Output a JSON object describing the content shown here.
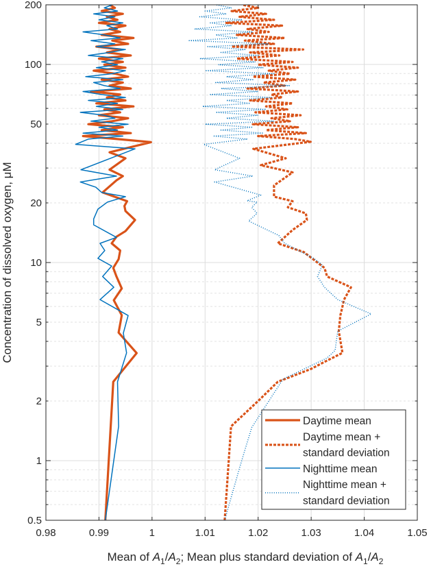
{
  "chart_data": {
    "type": "line",
    "title": "",
    "xlabel_parts": [
      {
        "t": "Mean of ",
        "s": "n"
      },
      {
        "t": "A",
        "s": "i"
      },
      {
        "t": "1",
        "s": "sub"
      },
      {
        "t": "/",
        "s": "n"
      },
      {
        "t": "A",
        "s": "i"
      },
      {
        "t": "2",
        "s": "sub"
      },
      {
        "t": "; Mean plus standard deviation of ",
        "s": "n"
      },
      {
        "t": "A",
        "s": "i"
      },
      {
        "t": "1",
        "s": "sub"
      },
      {
        "t": "/",
        "s": "n"
      },
      {
        "t": "A",
        "s": "i"
      },
      {
        "t": "2",
        "s": "sub"
      }
    ],
    "ylabel": "Concentration of dissolved oxygen, μM",
    "xlim": [
      0.98,
      1.05
    ],
    "ylim": [
      0.5,
      200
    ],
    "yscale": "log",
    "grid": true,
    "xticks": [
      0.98,
      0.99,
      1.0,
      1.01,
      1.02,
      1.03,
      1.04,
      1.05
    ],
    "xtick_labels": [
      "0.98",
      "0.99",
      "1",
      "1.01",
      "1.02",
      "1.03",
      "1.04",
      "1.05"
    ],
    "yticks": [
      0.5,
      1,
      2,
      5,
      10,
      20,
      50,
      100,
      200
    ],
    "ytick_labels": [
      "0.5",
      "1",
      "2",
      "5",
      "10",
      "20",
      "50",
      "100",
      "200"
    ],
    "legend_placement": "bottom-right",
    "high_y": [
      42,
      43.5,
      45,
      46.6,
      48.2,
      49.9,
      51.7,
      53.5,
      55.4,
      57.3,
      59.3,
      61.4,
      63.6,
      65.8,
      68.1,
      70.5,
      73,
      75.6,
      78.2,
      81,
      83.8,
      86.8,
      89.8,
      93,
      96.3,
      99.7,
      103,
      107,
      111,
      115,
      119,
      123,
      127,
      132,
      136,
      141,
      146,
      151,
      157,
      162,
      168,
      174,
      180,
      186,
      193,
      200
    ],
    "series": [
      {
        "name": "Daytime mean",
        "legend": [
          "Daytime mean"
        ],
        "color": "#D95319",
        "style": "solid-thick",
        "low": {
          "y": [
            0.5,
            2.5,
            3.49,
            4.43,
            5.42,
            6.45,
            7.4,
            8.5,
            9.4,
            10.4,
            11.5,
            12.5,
            13.5,
            14.4,
            16.4,
            18.2,
            19.3,
            20.4,
            22.6,
            26,
            27.3,
            29.4,
            33.6,
            36,
            40.5
          ],
          "x": [
            0.9912,
            0.9927,
            0.9971,
            0.9937,
            0.9943,
            0.9928,
            0.9943,
            0.9933,
            0.9927,
            0.9937,
            0.994,
            0.9924,
            0.9933,
            0.995,
            0.9968,
            0.995,
            0.9948,
            0.9953,
            0.9907,
            0.9933,
            0.9945,
            0.992,
            0.995,
            0.992,
            0.9998
          ]
        },
        "high_x": [
          0.9935,
          0.987,
          0.996,
          0.9905,
          0.9945,
          0.988,
          0.9925,
          0.9955,
          0.99,
          0.994,
          0.991,
          0.9965,
          0.9895,
          0.995,
          0.9915,
          0.994,
          0.9885,
          0.996,
          0.992,
          0.9945,
          0.9905,
          0.9955,
          0.993,
          0.989,
          0.995,
          0.991,
          0.9945,
          0.99,
          0.996,
          0.9915,
          0.994,
          0.9895,
          0.9955,
          0.9925,
          0.9965,
          0.9905,
          0.994,
          0.992,
          0.995,
          0.99,
          0.9935,
          0.9915,
          0.9945,
          0.9905,
          0.993,
          0.992
        ]
      },
      {
        "name": "Daytime mean + standard deviation",
        "legend": [
          "Daytime mean +",
          "standard deviation"
        ],
        "color": "#D95319",
        "style": "dashed-thick",
        "low": {
          "y": [
            0.5,
            1.49,
            2.0,
            2.5,
            2.9,
            3.2,
            3.5,
            4.5,
            5.4,
            6.5,
            7.5,
            8.5,
            9.4,
            11.3,
            12.5,
            14.6,
            16.4,
            17.7,
            19,
            20.4,
            21.5,
            24.5,
            28.5,
            31,
            33.6,
            37.5,
            40.7
          ],
          "x": [
            1.0137,
            1.0149,
            1.02,
            1.0237,
            1.0299,
            1.033,
            1.0359,
            1.0352,
            1.0355,
            1.0362,
            1.0375,
            1.033,
            1.0325,
            1.0286,
            1.0237,
            1.0265,
            1.0292,
            1.029,
            1.0256,
            1.0265,
            1.023,
            1.023,
            1.0265,
            1.0205,
            1.0252,
            1.0191,
            1.0299
          ]
        },
        "high_x": [
          1.027,
          1.02,
          1.029,
          1.0215,
          1.0275,
          1.019,
          1.026,
          1.0225,
          1.028,
          1.0195,
          1.0255,
          1.0215,
          1.0265,
          1.0185,
          1.0245,
          1.0225,
          1.0275,
          1.018,
          1.025,
          1.021,
          1.027,
          1.019,
          1.026,
          1.022,
          1.0275,
          1.02,
          1.0265,
          1.016,
          1.024,
          1.0185,
          1.0285,
          1.015,
          1.023,
          1.0175,
          1.025,
          1.016,
          1.022,
          1.018,
          1.0245,
          1.014,
          1.023,
          1.0165,
          1.0215,
          1.015,
          1.02,
          1.017
        ]
      },
      {
        "name": "Nighttime mean",
        "legend": [
          "Nighttime mean"
        ],
        "color": "#0072BD",
        "style": "solid-thin",
        "low": {
          "y": [
            0.5,
            1.49,
            2.5,
            3.5,
            4.4,
            5.4,
            6.5,
            7.5,
            8.5,
            9.6,
            10.5,
            11.5,
            12.5,
            13.4,
            15.5,
            16.6,
            18.6,
            20.2,
            21.5,
            22.6,
            24,
            25.5,
            27.3,
            29.4,
            37.5,
            39.5
          ],
          "x": [
            0.9912,
            0.9937,
            0.9935,
            0.9952,
            0.9946,
            0.9955,
            0.9902,
            0.9928,
            0.9907,
            0.9924,
            0.9898,
            0.9911,
            0.9902,
            0.9933,
            0.989,
            0.989,
            0.9898,
            0.9916,
            0.995,
            0.9905,
            0.9894,
            0.9865,
            0.9933,
            0.9866,
            0.9968,
            0.9856
          ]
        },
        "high_x": [
          0.988,
          0.9945,
          0.987,
          0.9935,
          0.99,
          0.9955,
          0.9885,
          0.993,
          0.991,
          0.9865,
          0.9945,
          0.9895,
          0.9935,
          0.988,
          0.995,
          0.9905,
          0.987,
          0.994,
          0.991,
          0.989,
          0.9945,
          0.9875,
          0.9925,
          0.995,
          0.9895,
          0.9935,
          0.9905,
          0.9945,
          0.988,
          0.992,
          0.995,
          0.9895,
          0.993,
          0.9885,
          0.994,
          0.991,
          0.987,
          0.9935,
          0.9915,
          0.9945,
          0.99,
          0.993,
          0.989,
          0.9935,
          0.991,
          0.9925
        ]
      },
      {
        "name": "Nighttime mean + standard deviation",
        "legend": [
          "Nighttime mean +",
          "standard deviation"
        ],
        "color": "#0072BD",
        "style": "dotted-thin",
        "low": {
          "y": [
            0.5,
            0.94,
            1.47,
            2.58,
            3.3,
            3.6,
            4.5,
            5.5,
            6.5,
            7.5,
            8.5,
            9.7,
            10.5,
            12.5,
            13.7,
            16.2,
            17.7,
            19,
            20.2,
            20.5,
            21.9,
            25.5,
            27.3,
            29.4,
            33.6,
            39.5
          ],
          "x": [
            1.0137,
            1.0166,
            1.0188,
            1.0247,
            1.033,
            1.0345,
            1.035,
            1.0413,
            1.035,
            1.0325,
            1.0312,
            1.0321,
            1.0305,
            1.025,
            1.0239,
            1.0182,
            1.0198,
            1.0188,
            1.0198,
            1.0179,
            1.0205,
            1.0118,
            1.019,
            1.0118,
            1.0165,
            1.0097
          ]
        },
        "high_x": [
          1.018,
          1.0115,
          1.021,
          1.013,
          1.019,
          1.01,
          1.023,
          1.014,
          1.02,
          1.012,
          1.0215,
          1.0095,
          1.0185,
          1.014,
          1.0225,
          1.011,
          1.02,
          1.013,
          1.026,
          1.012,
          1.019,
          1.014,
          1.023,
          1.01,
          1.021,
          1.0125,
          1.0195,
          1.009,
          1.02,
          1.013,
          1.0175,
          1.0105,
          1.022,
          1.007,
          1.016,
          1.012,
          1.019,
          1.008,
          1.015,
          1.011,
          1.017,
          1.009,
          1.014,
          1.01,
          1.015,
          1.012
        ]
      }
    ]
  }
}
